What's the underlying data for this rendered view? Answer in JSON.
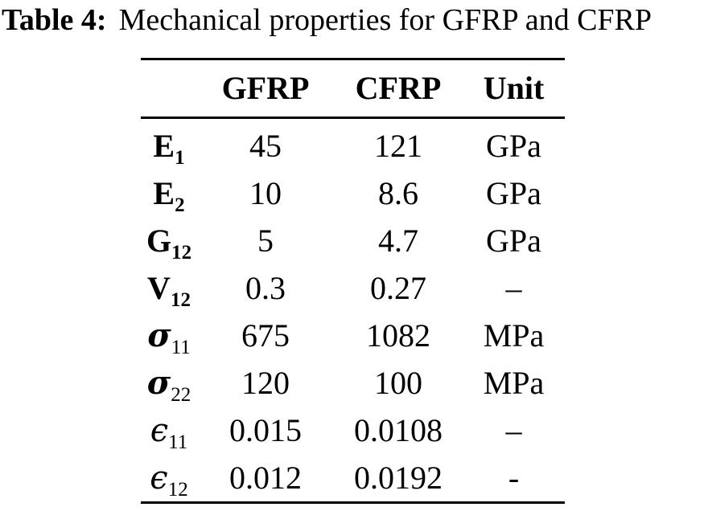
{
  "caption": {
    "label": "Table 4:",
    "text": "Mechanical properties for GFRP and CFRP"
  },
  "table": {
    "headers": [
      "",
      "GFRP",
      "CFRP",
      "Unit"
    ],
    "rows": [
      {
        "symbol": "E",
        "subscript": "1",
        "gfrp": "45",
        "cfrp": "121",
        "unit": "GPa"
      },
      {
        "symbol": "E",
        "subscript": "2",
        "gfrp": "10",
        "cfrp": "8.6",
        "unit": "GPa"
      },
      {
        "symbol": "G",
        "subscript": "12",
        "gfrp": "5",
        "cfrp": "4.7",
        "unit": "GPa"
      },
      {
        "symbol": "V",
        "subscript": "12",
        "gfrp": "0.3",
        "cfrp": "0.27",
        "unit": "–"
      },
      {
        "symbol": "σ",
        "subscript": "11",
        "gfrp": "675",
        "cfrp": "1082",
        "unit": "MPa"
      },
      {
        "symbol": "σ",
        "subscript": "22",
        "gfrp": "120",
        "cfrp": "100",
        "unit": "MPa"
      },
      {
        "symbol": "ϵ",
        "subscript": "11",
        "gfrp": "0.015",
        "cfrp": "0.0108",
        "unit": "–"
      },
      {
        "symbol": "ϵ",
        "subscript": "12",
        "gfrp": "0.012",
        "cfrp": "0.0192",
        "unit": "-"
      }
    ]
  },
  "colors": {
    "text": "#000000",
    "background": "#ffffff",
    "rule": "#000000"
  }
}
